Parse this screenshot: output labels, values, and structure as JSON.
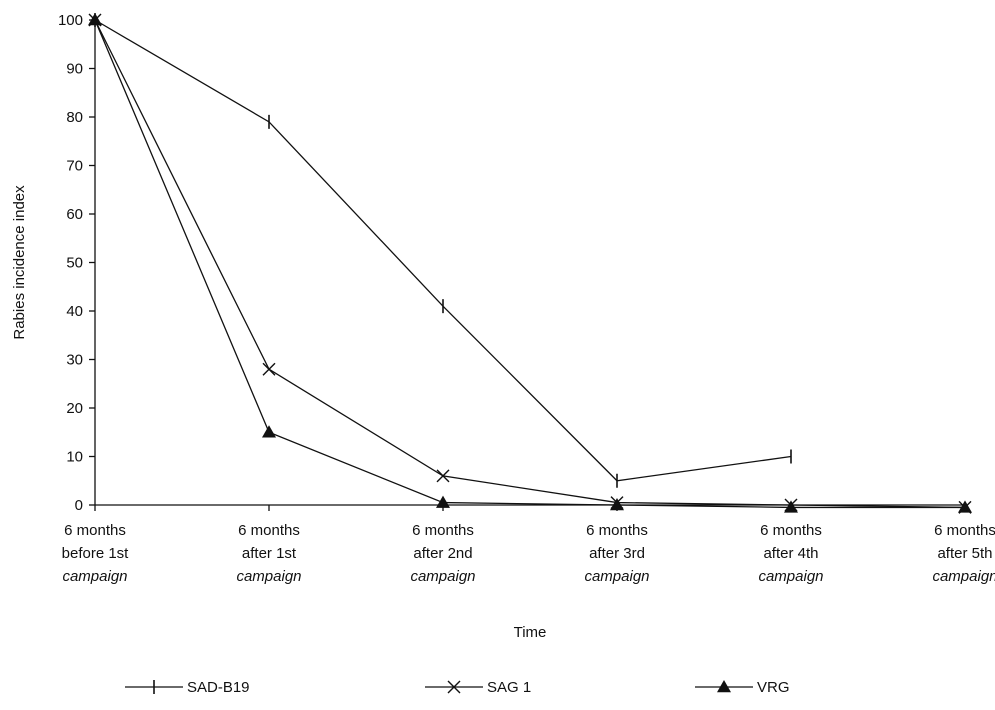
{
  "chart_data": {
    "type": "line",
    "title": "",
    "xlabel": "Time",
    "ylabel": "Rabies incidence index",
    "ylim": [
      0,
      100
    ],
    "yticks": [
      0,
      10,
      20,
      30,
      40,
      50,
      60,
      70,
      80,
      90,
      100
    ],
    "grid": false,
    "legend_position": "bottom",
    "categories": [
      [
        "6 months",
        "before 1st",
        "campaign"
      ],
      [
        "6 months",
        "after 1st",
        "campaign"
      ],
      [
        "6 months",
        "after 2nd",
        "campaign"
      ],
      [
        "6 months",
        "after 3rd",
        "campaign"
      ],
      [
        "6 months",
        "after 4th",
        "campaign"
      ],
      [
        "6 months",
        "after 5th",
        "campaign"
      ]
    ],
    "series": [
      {
        "name": "SAD-B19",
        "marker": "tick",
        "values": [
          100,
          79,
          41,
          5,
          10,
          null
        ]
      },
      {
        "name": "SAG 1",
        "marker": "cross",
        "values": [
          100,
          28,
          6,
          0.5,
          0,
          -0.5
        ]
      },
      {
        "name": "VRG",
        "marker": "triangle",
        "values": [
          100,
          15,
          0.5,
          0,
          -0.5,
          -0.5
        ]
      }
    ]
  }
}
